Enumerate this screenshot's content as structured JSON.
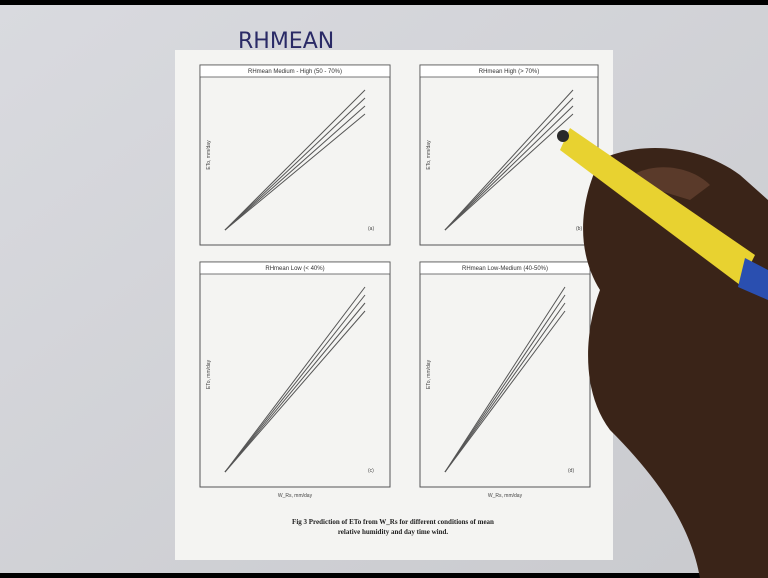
{
  "handwriting": "RHMEAN",
  "panels": [
    {
      "title": "RHmean Medium - High (50 - 70%)",
      "y_label": "ETo, mm/day",
      "tag": "(a)"
    },
    {
      "title": "RHmean High (> 70%)",
      "y_label": "ETo, mm/day",
      "tag": "(b)"
    },
    {
      "title": "RHmean Low (< 40%)",
      "y_label": "ETo, mm/day",
      "tag": "(c)"
    },
    {
      "title": "RHmean Low-Medium (40-50%)",
      "y_label": "ETo, mm/day",
      "tag": "(d)"
    }
  ],
  "x_label": "W_Rs, mm/day",
  "caption": [
    "Fig 3 Prediction of ETo from W_Rs for different conditions of mean",
    "relative humidity and day time wind."
  ]
}
